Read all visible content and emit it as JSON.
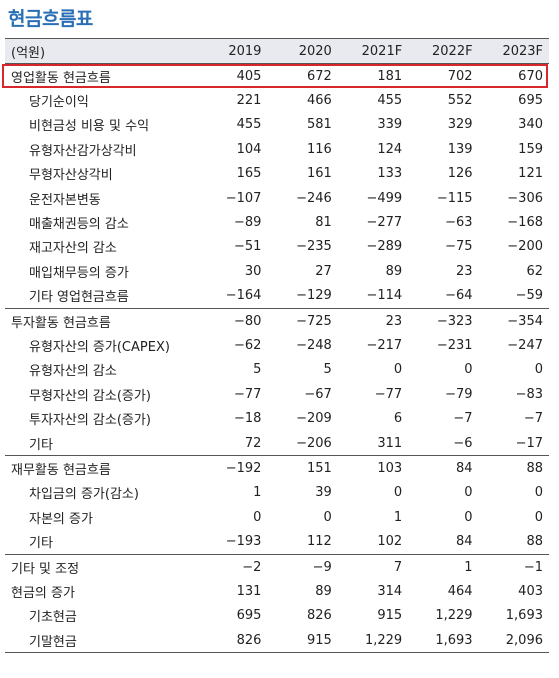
{
  "title": "현금흐름표",
  "header": [
    "(억원)",
    "2019",
    "2020",
    "2021F",
    "2022F",
    "2023F"
  ],
  "rows": [
    {
      "label": "영업활동 현금흐름",
      "values": [
        "405",
        "672",
        "181",
        "702",
        "670"
      ],
      "level": "top",
      "sep": false,
      "highlighted": true
    },
    {
      "label": "당기순이익",
      "values": [
        "221",
        "466",
        "455",
        "552",
        "695"
      ],
      "level": "sub"
    },
    {
      "label": "비현금성 비용 및 수익",
      "values": [
        "455",
        "581",
        "339",
        "329",
        "340"
      ],
      "level": "sub"
    },
    {
      "label": "유형자산감가상각비",
      "values": [
        "104",
        "116",
        "124",
        "139",
        "159"
      ],
      "level": "sub"
    },
    {
      "label": "무형자산상각비",
      "values": [
        "165",
        "161",
        "133",
        "126",
        "121"
      ],
      "level": "sub"
    },
    {
      "label": "운전자본변동",
      "values": [
        "−107",
        "−246",
        "−499",
        "−115",
        "−306"
      ],
      "level": "sub"
    },
    {
      "label": "매출채권등의 감소",
      "values": [
        "−89",
        "81",
        "−277",
        "−63",
        "−168"
      ],
      "level": "sub"
    },
    {
      "label": "재고자산의 감소",
      "values": [
        "−51",
        "−235",
        "−289",
        "−75",
        "−200"
      ],
      "level": "sub"
    },
    {
      "label": "매입채무등의 증가",
      "values": [
        "30",
        "27",
        "89",
        "23",
        "62"
      ],
      "level": "sub"
    },
    {
      "label": "기타 영업현금흐름",
      "values": [
        "−164",
        "−129",
        "−114",
        "−64",
        "−59"
      ],
      "level": "sub"
    },
    {
      "label": "투자활동 현금흐름",
      "values": [
        "−80",
        "−725",
        "23",
        "−323",
        "−354"
      ],
      "level": "top",
      "sep": true
    },
    {
      "label": "유형자산의 증가(CAPEX)",
      "values": [
        "−62",
        "−248",
        "−217",
        "−231",
        "−247"
      ],
      "level": "sub"
    },
    {
      "label": "유형자산의 감소",
      "values": [
        "5",
        "5",
        "0",
        "0",
        "0"
      ],
      "level": "sub"
    },
    {
      "label": "무형자산의 감소(증가)",
      "values": [
        "−77",
        "−67",
        "−77",
        "−79",
        "−83"
      ],
      "level": "sub"
    },
    {
      "label": "투자자산의 감소(증가)",
      "values": [
        "−18",
        "−209",
        "6",
        "−7",
        "−7"
      ],
      "level": "sub"
    },
    {
      "label": "기타",
      "values": [
        "72",
        "−206",
        "311",
        "−6",
        "−17"
      ],
      "level": "sub"
    },
    {
      "label": "재무활동 현금흐름",
      "values": [
        "−192",
        "151",
        "103",
        "84",
        "88"
      ],
      "level": "top",
      "sep": true
    },
    {
      "label": "차입금의 증가(감소)",
      "values": [
        "1",
        "39",
        "0",
        "0",
        "0"
      ],
      "level": "sub"
    },
    {
      "label": "자본의 증가",
      "values": [
        "0",
        "0",
        "1",
        "0",
        "0"
      ],
      "level": "sub"
    },
    {
      "label": "기타",
      "values": [
        "−193",
        "112",
        "102",
        "84",
        "88"
      ],
      "level": "sub"
    },
    {
      "label": "기타 및 조정",
      "values": [
        "−2",
        "−9",
        "7",
        "1",
        "−1"
      ],
      "level": "top",
      "sep": true
    },
    {
      "label": "현금의 증가",
      "values": [
        "131",
        "89",
        "314",
        "464",
        "403"
      ],
      "level": "top"
    },
    {
      "label": "기초현금",
      "values": [
        "695",
        "826",
        "915",
        "1,229",
        "1,693"
      ],
      "level": "sub"
    },
    {
      "label": "기말현금",
      "values": [
        "826",
        "915",
        "1,229",
        "1,693",
        "2,096"
      ],
      "level": "sub"
    }
  ],
  "colors": {
    "title": "#2a6fb5",
    "header_bg": "#e9eaf0",
    "highlight": "#d8262d"
  }
}
